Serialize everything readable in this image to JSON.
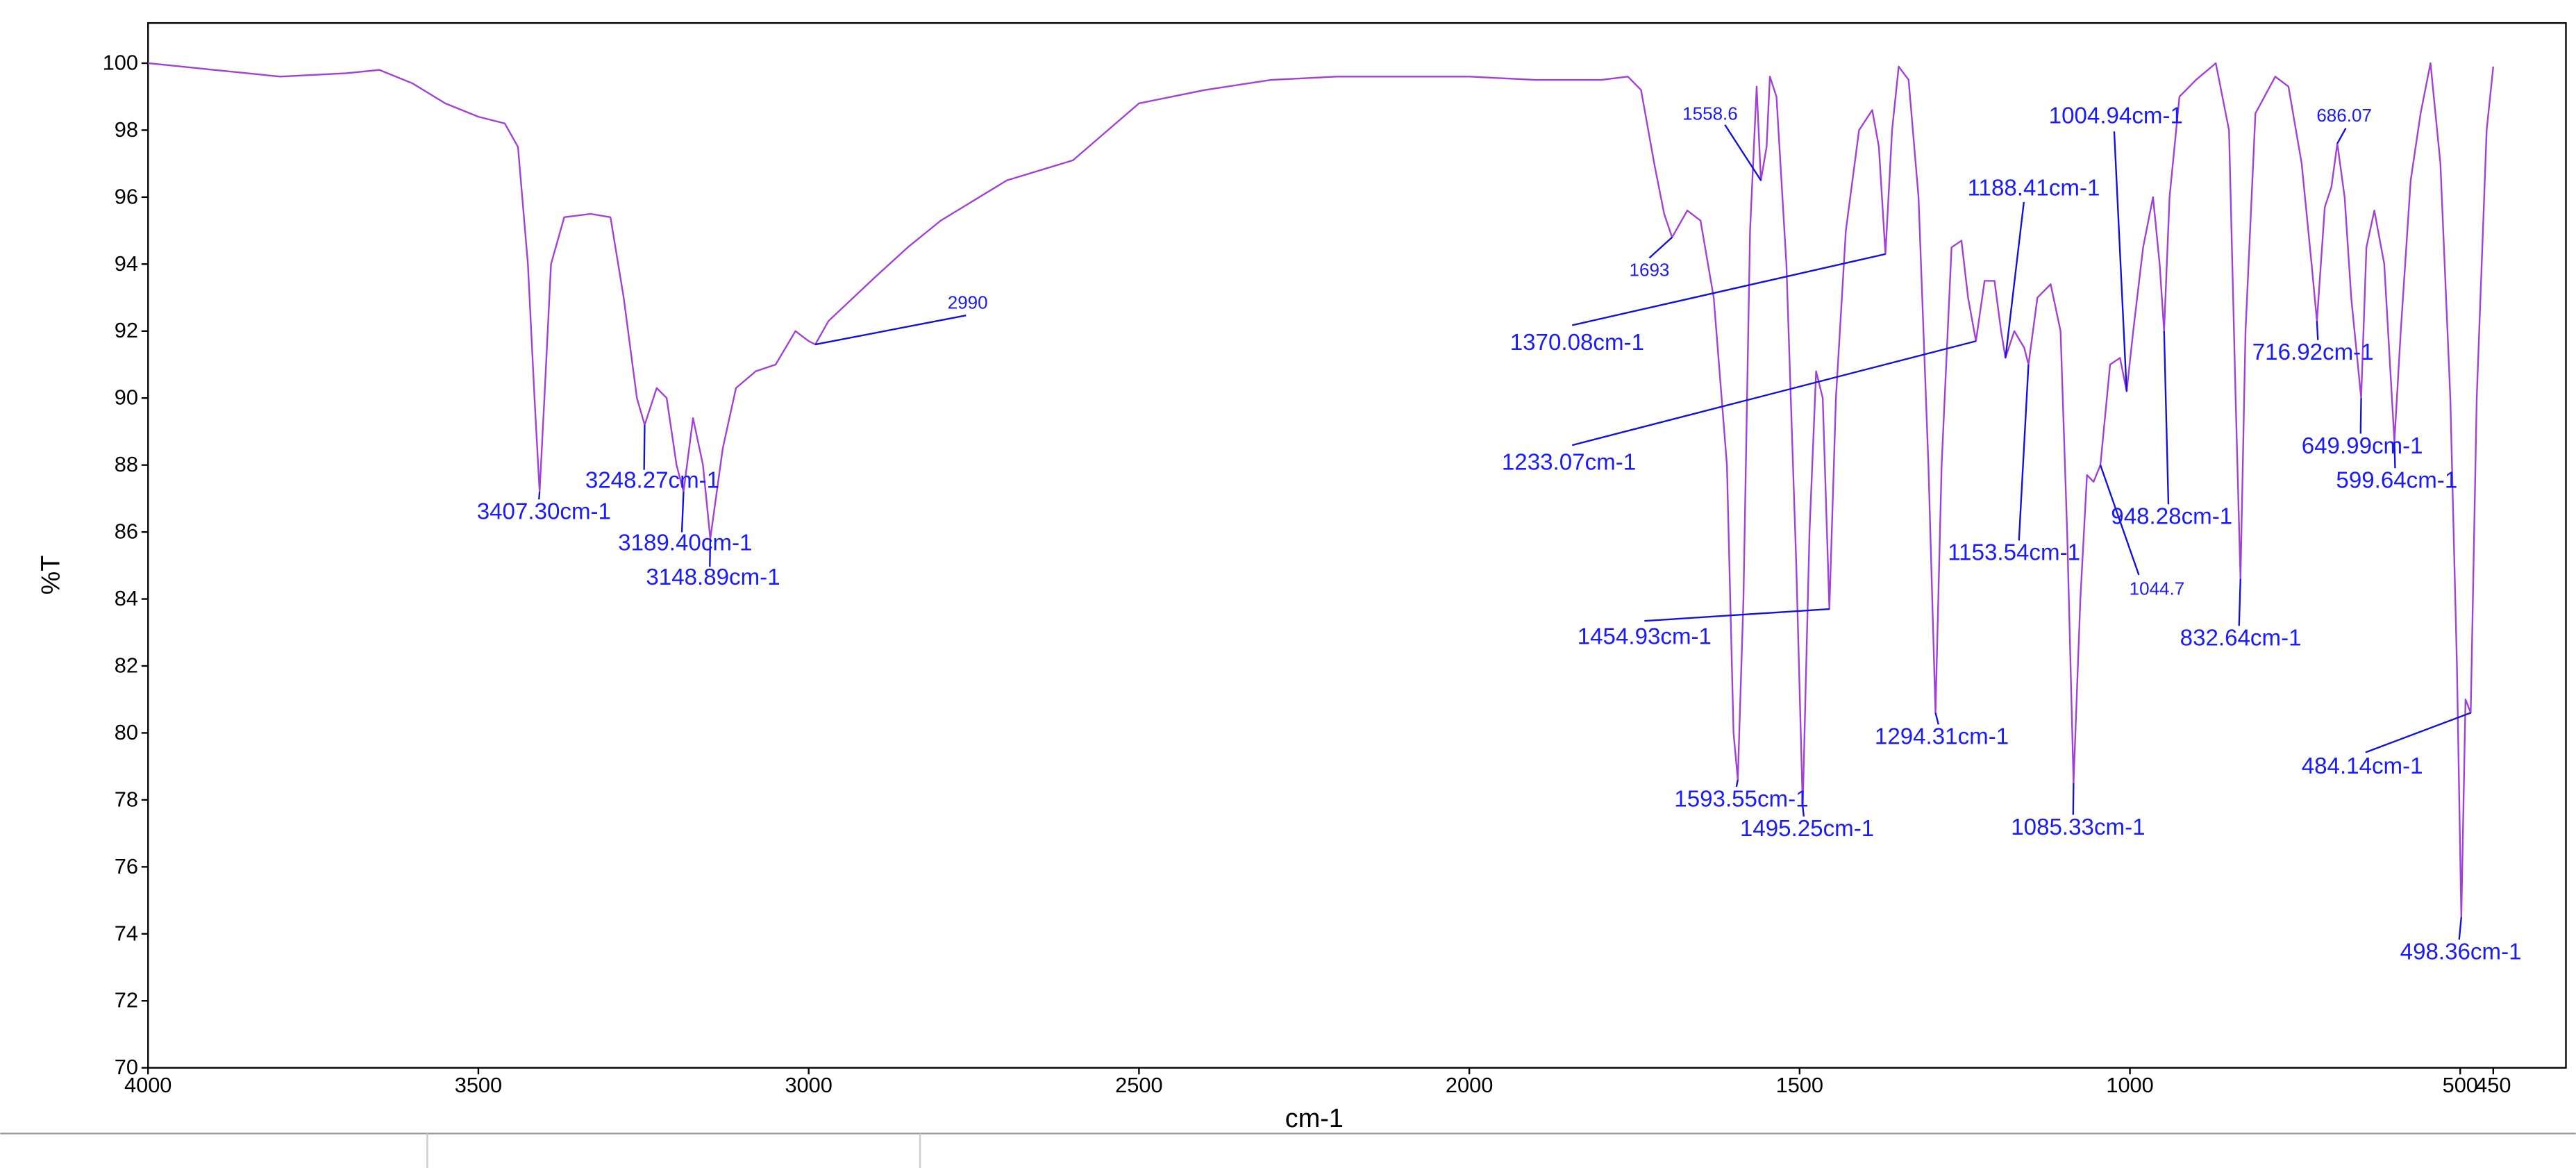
{
  "chart_data": {
    "type": "line",
    "xlabel": "cm-1",
    "ylabel": "%T",
    "xlim": [
      4000,
      340
    ],
    "ylim": [
      70,
      101.2
    ],
    "xticks": [
      4000,
      3500,
      3000,
      2500,
      2000,
      1500,
      1000,
      500,
      450
    ],
    "yticks": [
      70,
      72,
      74,
      76,
      78,
      80,
      82,
      84,
      86,
      88,
      90,
      92,
      94,
      96,
      98,
      100
    ],
    "x": [
      4000,
      3900,
      3800,
      3700,
      3650,
      3600,
      3550,
      3500,
      3460,
      3440,
      3425,
      3415,
      3407.3,
      3400,
      3390,
      3370,
      3330,
      3300,
      3280,
      3260,
      3248.27,
      3230,
      3215,
      3200,
      3189.4,
      3175,
      3160,
      3148.89,
      3130,
      3110,
      3080,
      3050,
      3020,
      3000,
      2990,
      2970,
      2900,
      2850,
      2800,
      2700,
      2600,
      2500,
      2400,
      2300,
      2200,
      2100,
      2000,
      1900,
      1800,
      1760,
      1740,
      1720,
      1705,
      1693,
      1670,
      1650,
      1630,
      1610,
      1600,
      1593.55,
      1585,
      1575,
      1565,
      1558.6,
      1550,
      1545,
      1535,
      1520,
      1505,
      1495.25,
      1485,
      1475,
      1465,
      1454.93,
      1445,
      1430,
      1410,
      1390,
      1380,
      1370.08,
      1360,
      1350,
      1335,
      1320,
      1305,
      1294.31,
      1285,
      1270,
      1255,
      1245,
      1233.07,
      1220,
      1205,
      1195,
      1188.41,
      1175,
      1160,
      1153.54,
      1140,
      1120,
      1105,
      1095,
      1085.33,
      1075,
      1065,
      1055,
      1044.7,
      1030,
      1015,
      1004.94,
      995,
      980,
      965,
      955,
      948.28,
      940,
      925,
      900,
      870,
      850,
      840,
      832.64,
      825,
      810,
      780,
      760,
      740,
      725,
      716.92,
      705,
      695,
      686.07,
      675,
      665,
      655,
      649.99,
      642,
      630,
      615,
      599.64,
      590,
      575,
      560,
      545,
      530,
      515,
      505,
      498.36,
      492,
      484.14,
      475,
      460,
      450
    ],
    "series": [
      {
        "name": "%T",
        "color": "#a040d8",
        "values": [
          100,
          99.8,
          99.6,
          99.7,
          99.8,
          99.4,
          98.8,
          98.4,
          98.2,
          97.5,
          94,
          90,
          87.2,
          90,
          94,
          95.4,
          95.5,
          95.4,
          93,
          90,
          89.2,
          90.3,
          90,
          88,
          87.2,
          89.4,
          88,
          85.8,
          88.5,
          90.3,
          90.8,
          91,
          92,
          91.7,
          91.6,
          92.3,
          93.6,
          94.5,
          95.3,
          96.5,
          97.1,
          98.8,
          99.2,
          99.5,
          99.6,
          99.6,
          99.6,
          99.5,
          99.5,
          99.6,
          99.2,
          97,
          95.5,
          94.8,
          95.6,
          95.3,
          93,
          88,
          80,
          78.6,
          84,
          95,
          99.3,
          96.5,
          97.5,
          99.6,
          99,
          94,
          85,
          77.8,
          86,
          90.8,
          90,
          83.7,
          90,
          95,
          98,
          98.6,
          97.5,
          94.3,
          98,
          99.9,
          99.5,
          96,
          88,
          80.6,
          88,
          94.5,
          94.7,
          93,
          91.7,
          93.5,
          93.5,
          92,
          91.2,
          92,
          91.5,
          91,
          93,
          93.4,
          92,
          86,
          78.5,
          84,
          87.7,
          87.5,
          88,
          91,
          91.2,
          90.2,
          92,
          94.5,
          96,
          94,
          92,
          96,
          99,
          99.5,
          100,
          98,
          90,
          84.6,
          92,
          98.5,
          99.6,
          99.3,
          97,
          94,
          92.3,
          95.7,
          96.3,
          97.6,
          96,
          93,
          91,
          90,
          94.5,
          95.6,
          94,
          88.7,
          92,
          96.5,
          98.5,
          100,
          97,
          90,
          82,
          74.5,
          81,
          80.6,
          90,
          98,
          99.9
        ]
      }
    ],
    "annotations": [
      {
        "label": "3407.30cm-1",
        "x": 3407.3
      },
      {
        "label": "3248.27cm-1",
        "x": 3248.27
      },
      {
        "label": "3189.40cm-1",
        "x": 3189.4
      },
      {
        "label": "3148.89cm-1",
        "x": 3148.89
      },
      {
        "label": "2990",
        "x": 2990
      },
      {
        "label": "1693",
        "x": 1693
      },
      {
        "label": "1558.6",
        "x": 1558.6
      },
      {
        "label": "1370.08cm-1",
        "x": 1370.08
      },
      {
        "label": "1233.07cm-1",
        "x": 1233.07
      },
      {
        "label": "1454.93cm-1",
        "x": 1454.93
      },
      {
        "label": "1593.55cm-1",
        "x": 1593.55
      },
      {
        "label": "1495.25cm-1",
        "x": 1495.25
      },
      {
        "label": "1294.31cm-1",
        "x": 1294.31
      },
      {
        "label": "1188.41cm-1",
        "x": 1188.41
      },
      {
        "label": "1153.54cm-1",
        "x": 1153.54
      },
      {
        "label": "1085.33cm-1",
        "x": 1085.33
      },
      {
        "label": "1044.7",
        "x": 1044.7
      },
      {
        "label": "1004.94cm-1",
        "x": 1004.94
      },
      {
        "label": "948.28cm-1",
        "x": 948.28
      },
      {
        "label": "832.64cm-1",
        "x": 832.64
      },
      {
        "label": "716.92cm-1",
        "x": 716.92
      },
      {
        "label": "686.07",
        "x": 686.07
      },
      {
        "label": "649.99cm-1",
        "x": 649.99
      },
      {
        "label": "599.64cm-1",
        "x": 599.64
      },
      {
        "label": "484.14cm-1",
        "x": 484.14
      },
      {
        "label": "498.36cm-1",
        "x": 498.36
      }
    ]
  }
}
